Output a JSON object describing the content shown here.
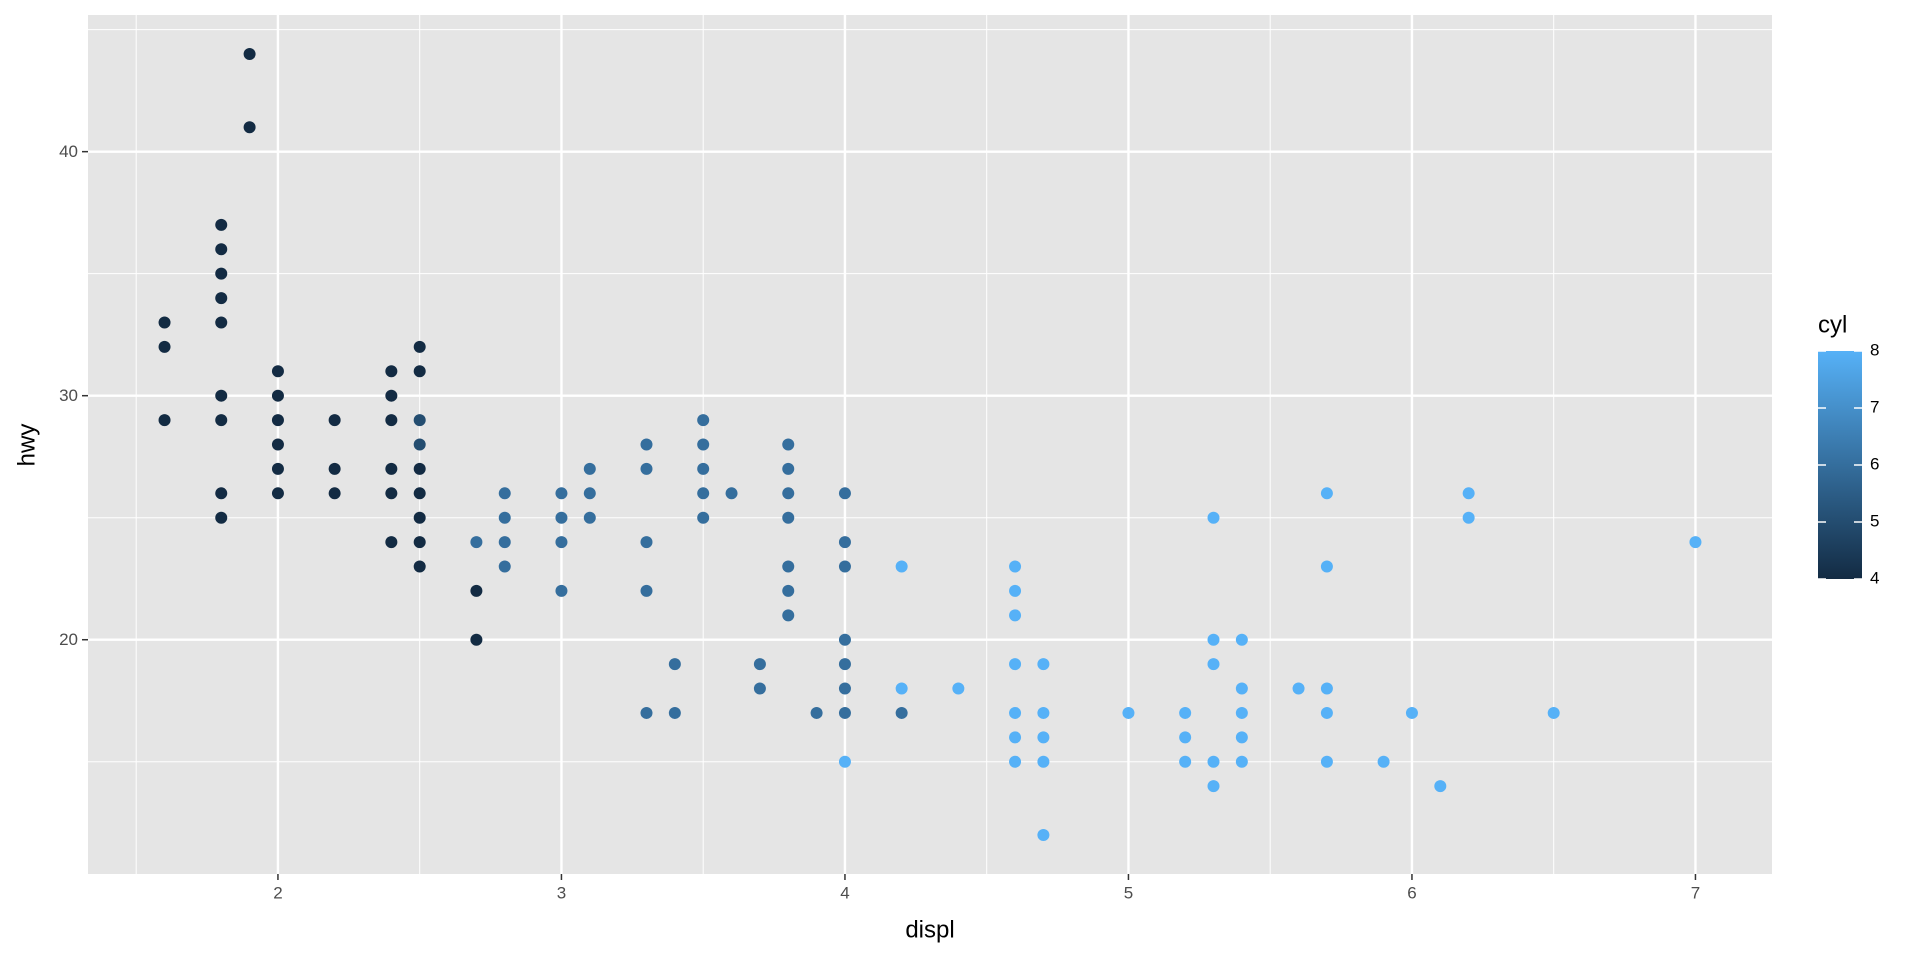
{
  "chart_data": {
    "type": "scatter",
    "x_label": "displ",
    "y_label": "hwy",
    "xlim": [
      1.33,
      7.27
    ],
    "ylim": [
      10.4,
      45.6
    ],
    "xticks": [
      2,
      3,
      4,
      5,
      6,
      7
    ],
    "yticks": [
      20,
      30,
      40
    ],
    "x_minor_grid": [
      1.5,
      2.5,
      3.5,
      4.5,
      5.5,
      6.5
    ],
    "y_minor_grid": [
      15,
      25,
      35,
      45
    ],
    "grid": true,
    "panel_color": "#e5e5e5",
    "grid_color": "#ffffff",
    "legend_title": "cyl",
    "legend_position": "right",
    "colorlim": [
      4,
      8
    ],
    "colorbar_ticks": [
      4,
      5,
      6,
      7,
      8
    ],
    "color_low": "#132b43",
    "color_high": "#56b1f7",
    "x": [
      1.6,
      1.6,
      1.6,
      1.8,
      1.8,
      1.8,
      1.8,
      1.8,
      1.8,
      1.8,
      1.8,
      1.8,
      1.9,
      1.9,
      2,
      2,
      2,
      2,
      2,
      2,
      2.2,
      2.2,
      2.2,
      2.4,
      2.4,
      2.4,
      2.4,
      2.4,
      2.4,
      2.5,
      2.5,
      2.5,
      2.5,
      2.5,
      2.5,
      2.5,
      2.5,
      2.5,
      2.7,
      2.7,
      2.7,
      2.8,
      2.8,
      2.8,
      2.8,
      3,
      3,
      3,
      3,
      3.1,
      3.1,
      3.1,
      3.3,
      3.3,
      3.3,
      3.3,
      3.3,
      3.4,
      3.4,
      3.5,
      3.5,
      3.5,
      3.5,
      3.5,
      3.6,
      3.7,
      3.7,
      3.8,
      3.8,
      3.8,
      3.8,
      3.8,
      3.8,
      3.8,
      3.9,
      4,
      4,
      4,
      4,
      4,
      4,
      4,
      4,
      4.2,
      4.2,
      4.2,
      4.4,
      4.6,
      4.6,
      4.6,
      4.6,
      4.6,
      4.6,
      4.6,
      4.7,
      4.7,
      4.7,
      4.7,
      4.7,
      5,
      5.2,
      5.2,
      5.2,
      5.3,
      5.3,
      5.3,
      5.3,
      5.3,
      5.4,
      5.4,
      5.4,
      5.4,
      5.4,
      5.6,
      5.7,
      5.7,
      5.7,
      5.7,
      5.7,
      5.9,
      6,
      6.1,
      6.2,
      6.2,
      6.5,
      7
    ],
    "values": [
      33,
      32,
      29,
      37,
      36,
      35,
      34,
      33,
      30,
      29,
      26,
      25,
      44,
      41,
      31,
      30,
      29,
      28,
      27,
      26,
      29,
      27,
      26,
      31,
      30,
      29,
      27,
      26,
      24,
      32,
      31,
      29,
      28,
      27,
      26,
      25,
      24,
      23,
      24,
      22,
      20,
      26,
      25,
      24,
      23,
      26,
      25,
      24,
      22,
      27,
      26,
      25,
      28,
      27,
      24,
      22,
      17,
      19,
      17,
      29,
      28,
      27,
      26,
      25,
      26,
      19,
      18,
      28,
      27,
      26,
      25,
      23,
      22,
      21,
      17,
      26,
      24,
      23,
      20,
      19,
      18,
      17,
      15,
      23,
      18,
      17,
      18,
      23,
      22,
      21,
      19,
      17,
      16,
      15,
      19,
      17,
      16,
      15,
      12,
      17,
      17,
      16,
      15,
      25,
      20,
      19,
      15,
      14,
      20,
      18,
      17,
      16,
      15,
      18,
      26,
      23,
      18,
      17,
      15,
      15,
      17,
      14,
      26,
      25,
      17,
      24
    ],
    "cyl": [
      4,
      4,
      4,
      4,
      4,
      4,
      4,
      4,
      4,
      4,
      4,
      4,
      4,
      4,
      4,
      4,
      4,
      4,
      4,
      4,
      4,
      4,
      4,
      4,
      4,
      4,
      4,
      4,
      4,
      4,
      4,
      5,
      5,
      4,
      4,
      4,
      4,
      4,
      6,
      4,
      4,
      6,
      6,
      6,
      6,
      6,
      6,
      6,
      6,
      6,
      6,
      6,
      6,
      6,
      6,
      6,
      6,
      6,
      6,
      6,
      6,
      6,
      6,
      6,
      6,
      6,
      6,
      6,
      6,
      6,
      6,
      6,
      6,
      6,
      6,
      6,
      6,
      6,
      6,
      6,
      6,
      6,
      8,
      8,
      8,
      6,
      8,
      8,
      8,
      8,
      8,
      8,
      8,
      8,
      8,
      8,
      8,
      8,
      8,
      8,
      8,
      8,
      8,
      8,
      8,
      8,
      8,
      8,
      8,
      8,
      8,
      8,
      8,
      8,
      8,
      8,
      8,
      8,
      8,
      8,
      8,
      8,
      8,
      8,
      8,
      8
    ]
  }
}
